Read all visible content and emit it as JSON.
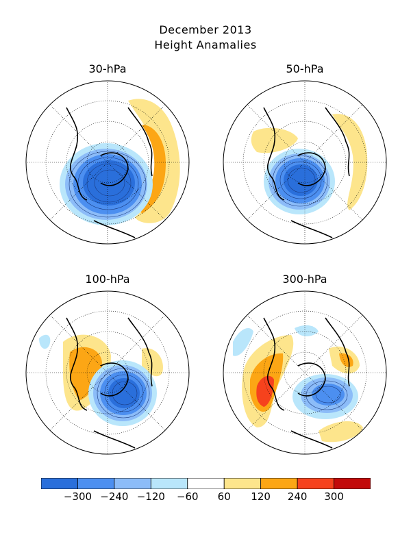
{
  "title": "December 2013",
  "subtitle": "Height Anamalies",
  "panels": [
    {
      "label": "30-hPa"
    },
    {
      "label": "50-hPa"
    },
    {
      "label": "100-hPa"
    },
    {
      "label": "300-hPa"
    }
  ],
  "colorbar": {
    "colors": [
      "#2a6fdb",
      "#4c8ff0",
      "#8cbcf8",
      "#b9e6fb",
      "#ffffff",
      "#fde58c",
      "#fca615",
      "#f6421d",
      "#c20a0a"
    ],
    "tick_labels": [
      "-300",
      "-240",
      "-120",
      "-60",
      "60",
      "120",
      "240",
      "300"
    ]
  },
  "legend_colors": {
    "neg_strong": "#2a6fdb",
    "neg_mid": "#4c8ff0",
    "neg_light": "#8cbcf8",
    "neg_pale": "#b9e6fb",
    "pos_pale": "#fde58c",
    "pos_mid": "#fca615",
    "pos_strong": "#f6421d"
  }
}
